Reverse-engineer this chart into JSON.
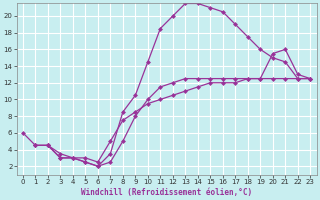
{
  "xlabel": "Windchill (Refroidissement éolien,°C)",
  "background_color": "#c8eef0",
  "grid_color": "#ffffff",
  "line_color": "#993399",
  "xlim_min": -0.5,
  "xlim_max": 23.5,
  "ylim_min": 1.0,
  "ylim_max": 21.5,
  "xticks": [
    0,
    1,
    2,
    3,
    4,
    5,
    6,
    7,
    8,
    9,
    10,
    11,
    12,
    13,
    14,
    15,
    16,
    17,
    18,
    19,
    20,
    21,
    22,
    23
  ],
  "yticks": [
    2,
    4,
    6,
    8,
    10,
    12,
    14,
    16,
    18,
    20
  ],
  "curve1_x": [
    1,
    2,
    3,
    4,
    5,
    6,
    7,
    8,
    9,
    10,
    11,
    12,
    13,
    14,
    15,
    16,
    17,
    18,
    19,
    20,
    21,
    22,
    23
  ],
  "curve1_y": [
    4.5,
    4.5,
    3.0,
    3.0,
    2.5,
    2.0,
    3.5,
    8.5,
    10.5,
    14.5,
    18.5,
    20.0,
    21.5,
    21.5,
    21.0,
    20.5,
    19.0,
    17.5,
    16.0,
    15.0,
    14.5,
    12.5,
    12.5
  ],
  "curve2_x": [
    0,
    1,
    2,
    3,
    4,
    5,
    6,
    7,
    8,
    9,
    10,
    11,
    12,
    13,
    14,
    15,
    16,
    17,
    18,
    19,
    20,
    21,
    22,
    23
  ],
  "curve2_y": [
    6.0,
    4.5,
    4.5,
    3.5,
    3.0,
    3.0,
    2.5,
    5.0,
    7.5,
    8.5,
    9.5,
    10.0,
    10.5,
    11.0,
    11.5,
    12.0,
    12.0,
    12.0,
    12.5,
    12.5,
    12.5,
    12.5,
    12.5,
    12.5
  ],
  "curve3_x": [
    1,
    2,
    3,
    4,
    5,
    6,
    7,
    8,
    9,
    10,
    11,
    12,
    13,
    14,
    15,
    16,
    17,
    18,
    19,
    20,
    21,
    22,
    23
  ],
  "curve3_y": [
    4.5,
    4.5,
    3.0,
    3.0,
    2.5,
    2.0,
    2.5,
    5.0,
    8.0,
    10.0,
    11.5,
    12.0,
    12.5,
    12.5,
    12.5,
    12.5,
    12.5,
    12.5,
    12.5,
    15.5,
    16.0,
    13.0,
    12.5
  ],
  "markersize": 2.5,
  "linewidth": 0.9,
  "xlabel_fontsize": 5.5,
  "tick_fontsize": 5.0
}
